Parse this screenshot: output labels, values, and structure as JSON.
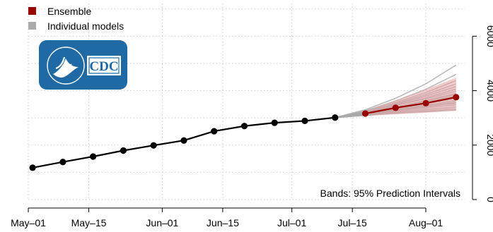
{
  "chart_data": {
    "type": "line",
    "annotation": "Bands: 95% Prediction Intervals",
    "legend": {
      "placement": "top-left",
      "items": [
        {
          "label": "Ensemble",
          "color": "#990000"
        },
        {
          "label": "Individual models",
          "color": "#aaaaaa"
        }
      ]
    },
    "logo": {
      "text": "CDC",
      "background": "#1f6aa5"
    },
    "x_axis": {
      "type": "date",
      "range": [
        "2020-05-01",
        "2020-08-10"
      ],
      "ticks": [
        {
          "date": "2020-05-01",
          "label": "May–01"
        },
        {
          "date": "2020-05-15",
          "label": "May–15"
        },
        {
          "date": "2020-06-01",
          "label": "Jun–01"
        },
        {
          "date": "2020-06-15",
          "label": "Jun–15"
        },
        {
          "date": "2020-07-01",
          "label": "Jul–01"
        },
        {
          "date": "2020-07-15",
          "label": "Jul–15"
        },
        {
          "date": "2020-08-01",
          "label": "Aug–01"
        }
      ]
    },
    "y_axis": {
      "position": "right",
      "range": [
        0,
        7200
      ],
      "ticks": [
        0,
        2000,
        4000,
        6000
      ],
      "tick_labels": [
        "0",
        "2000",
        "4000",
        "6000"
      ],
      "label_rotation": 90
    },
    "grid": true,
    "series": [
      {
        "name": "Ensemble",
        "role": "observed",
        "color": "#000000",
        "points": [
          {
            "x": "2020-05-02",
            "y": 1170
          },
          {
            "x": "2020-05-09",
            "y": 1380
          },
          {
            "x": "2020-05-16",
            "y": 1580
          },
          {
            "x": "2020-05-23",
            "y": 1800
          },
          {
            "x": "2020-05-30",
            "y": 1990
          },
          {
            "x": "2020-06-06",
            "y": 2170
          },
          {
            "x": "2020-06-13",
            "y": 2510
          },
          {
            "x": "2020-06-20",
            "y": 2700
          },
          {
            "x": "2020-06-27",
            "y": 2820
          },
          {
            "x": "2020-07-04",
            "y": 2890
          },
          {
            "x": "2020-07-11",
            "y": 3010
          }
        ]
      },
      {
        "name": "Ensemble",
        "role": "forecast",
        "color": "#990000",
        "band_color": "#e8a3a3",
        "points": [
          {
            "x": "2020-07-18",
            "y": 3160,
            "lower": 3080,
            "upper": 3240
          },
          {
            "x": "2020-07-25",
            "y": 3370,
            "lower": 3130,
            "upper": 3640
          },
          {
            "x": "2020-08-01",
            "y": 3540,
            "lower": 3190,
            "upper": 4040
          },
          {
            "x": "2020-08-08",
            "y": 3760,
            "lower": 3270,
            "upper": 4480
          }
        ]
      }
    ],
    "individual_models": {
      "color": "#aaaaaa",
      "dates": [
        "2020-07-11",
        "2020-07-18",
        "2020-07-25",
        "2020-08-01",
        "2020-08-08"
      ],
      "models": [
        [
          3010,
          3150,
          3330,
          3520,
          3720
        ],
        [
          3010,
          3170,
          3390,
          3640,
          3900
        ],
        [
          3010,
          3190,
          3450,
          3740,
          4060
        ],
        [
          3010,
          3220,
          3520,
          3860,
          4250
        ],
        [
          3010,
          3260,
          3620,
          4050,
          4600
        ],
        [
          3010,
          3300,
          3720,
          4250,
          4940
        ],
        [
          3010,
          3140,
          3290,
          3440,
          3580
        ],
        [
          3010,
          3120,
          3250,
          3370,
          3480
        ],
        [
          3010,
          3110,
          3220,
          3310,
          3400
        ],
        [
          3010,
          3100,
          3190,
          3260,
          3330
        ],
        [
          3010,
          3180,
          3400,
          3620,
          3850
        ],
        [
          3010,
          3200,
          3460,
          3700,
          3980
        ],
        [
          3010,
          3160,
          3360,
          3580,
          3800
        ],
        [
          3010,
          3240,
          3560,
          3930,
          4370
        ],
        [
          3010,
          3130,
          3270,
          3410,
          3540
        ],
        [
          3010,
          3150,
          3300,
          3470,
          3640
        ],
        [
          3010,
          3210,
          3490,
          3800,
          4150
        ],
        [
          3010,
          3090,
          3170,
          3230,
          3280
        ]
      ]
    }
  }
}
